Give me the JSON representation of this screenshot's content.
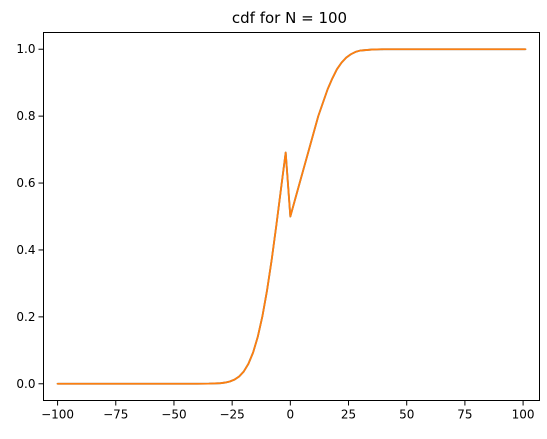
{
  "chart_data": {
    "type": "line",
    "title": "cdf for N = 100",
    "xlabel": "",
    "ylabel": "",
    "xlim": [
      -106.05,
      107.05
    ],
    "ylim": [
      -0.05,
      1.05
    ],
    "x_ticks": [
      -100,
      -75,
      -50,
      -25,
      0,
      25,
      50,
      75,
      100
    ],
    "x_tick_labels": [
      "−100",
      "−75",
      "−50",
      "−25",
      "0",
      "25",
      "50",
      "75",
      "100"
    ],
    "y_ticks": [
      0.0,
      0.2,
      0.4,
      0.6,
      0.8,
      1.0
    ],
    "y_tick_labels": [
      "0.0",
      "0.2",
      "0.4",
      "0.6",
      "0.8",
      "1.0"
    ],
    "grid": false,
    "series": [
      {
        "color": "#1f77b4",
        "x": [
          -100,
          -90,
          -80,
          -70,
          -60,
          -50,
          -40,
          -35,
          -30,
          -28,
          -26,
          -24,
          -22,
          -20,
          -18,
          -16,
          -14,
          -12,
          -10,
          -8,
          -6,
          -4,
          -2,
          0,
          2,
          4,
          6,
          8,
          10,
          12,
          14,
          16,
          18,
          20,
          22,
          24,
          26,
          28,
          30,
          35,
          40,
          50,
          60,
          70,
          80,
          90,
          101
        ],
        "y": [
          0.0,
          0.0,
          0.0,
          0.0,
          0.0,
          0.0,
          0.0,
          0.0005,
          0.0018,
          0.0036,
          0.0068,
          0.0124,
          0.0218,
          0.0368,
          0.0598,
          0.0934,
          0.1401,
          0.2019,
          0.2794,
          0.3714,
          0.4744,
          0.5832,
          0.6914,
          0.5,
          0.55,
          0.6,
          0.65,
          0.7,
          0.75,
          0.8,
          0.84,
          0.88,
          0.912,
          0.94,
          0.96,
          0.975,
          0.985,
          0.992,
          0.996,
          0.999,
          1.0,
          1.0,
          1.0,
          1.0,
          1.0,
          1.0,
          1.0
        ]
      },
      {
        "color": "#ff7f0e",
        "x": [
          -100,
          -90,
          -80,
          -70,
          -60,
          -50,
          -40,
          -35,
          -30,
          -28,
          -26,
          -24,
          -22,
          -20,
          -18,
          -16,
          -14,
          -12,
          -10,
          -8,
          -6,
          -4,
          -2,
          0,
          2,
          4,
          6,
          8,
          10,
          12,
          14,
          16,
          18,
          20,
          22,
          24,
          26,
          28,
          30,
          35,
          40,
          50,
          60,
          70,
          80,
          90,
          101
        ],
        "y": [
          0.0,
          0.0,
          0.0,
          0.0,
          0.0,
          0.0,
          0.0,
          0.0005,
          0.0018,
          0.0036,
          0.0068,
          0.0124,
          0.0218,
          0.0368,
          0.0598,
          0.0934,
          0.1401,
          0.2019,
          0.2794,
          0.3714,
          0.4744,
          0.5832,
          0.6914,
          0.5,
          0.55,
          0.6,
          0.65,
          0.7,
          0.75,
          0.8,
          0.84,
          0.88,
          0.912,
          0.94,
          0.96,
          0.975,
          0.985,
          0.992,
          0.996,
          0.999,
          1.0,
          1.0,
          1.0,
          1.0,
          1.0,
          1.0,
          1.0
        ]
      }
    ]
  }
}
